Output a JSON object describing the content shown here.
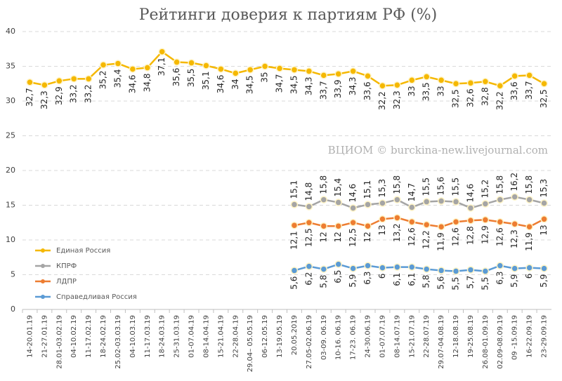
{
  "chart_data": {
    "type": "line",
    "title": "Рейтинги доверия к партиям РФ (%)",
    "annotation": "ВЦИОМ © burckina-new.livejournal.com",
    "categories": [
      "14-20.01.19",
      "21-27.01.19",
      "28.01-03.02.19",
      "04-10.02.19",
      "11-17.02.19",
      "18-24.02.19",
      "25.02-03.03.19",
      "04-10.03.19",
      "11-17.03.19",
      "18-24.03.19",
      "25-31.03.19",
      "01-07.04.19",
      "08-14.04.19",
      "15-21.04.19",
      "22-28.04.19",
      "29.04– 05.05.19",
      "06-12.05.19",
      "13-19.05.19",
      "20.05.2019",
      "27.05-02.06.19",
      "03-09. 06.19",
      "10-16. 06.19",
      "17-23. 06.19",
      "24-30.06.19",
      "01-07.07.19",
      "08-14.07.19",
      "15-21.07.19",
      "22-28.07.19",
      "29.07-04.08.19",
      "12-18.08.19",
      "19-25.08.19",
      "26.08-01.09.19",
      "02.09-08.09.19",
      "09 -15.09.19",
      "16-22.09.19",
      "23-29.09.19"
    ],
    "series": [
      {
        "name": "Единая Россия",
        "color": "#f5b800",
        "values": [
          32.7,
          32.3,
          32.9,
          33.2,
          33.2,
          35.2,
          35.4,
          34.6,
          34.8,
          37.1,
          35.6,
          35.5,
          35.1,
          34.6,
          34,
          34.5,
          35,
          34.7,
          34.5,
          34.3,
          33.7,
          33.9,
          34.3,
          33.6,
          32.2,
          32.3,
          33,
          33.5,
          33,
          32.5,
          32.6,
          32.8,
          32.2,
          33.6,
          33.7,
          32.5
        ],
        "value_labels": [
          "32,7",
          "32,3",
          "32,9",
          "33,2",
          "33,2",
          "35,2",
          "35,4",
          "34,6",
          "34,8",
          "37,1",
          "35,6",
          "35,5",
          "35,1",
          "34,6",
          "34",
          "34,5",
          "35",
          "34,7",
          "34,5",
          "34,3",
          "33,7",
          "33,9",
          "34,3",
          "33,6",
          "32,2",
          "32,3",
          "33",
          "33,5",
          "33",
          "32,5",
          "32,6",
          "32,8",
          "32,2",
          "33,6",
          "33,7",
          "32,5"
        ]
      },
      {
        "name": "КПРФ",
        "color": "#a5a5a5",
        "values": [
          null,
          null,
          null,
          null,
          null,
          null,
          null,
          null,
          null,
          null,
          null,
          null,
          null,
          null,
          null,
          null,
          null,
          null,
          15.1,
          14.8,
          15.8,
          15.4,
          14.6,
          15.1,
          15.3,
          15.8,
          14.7,
          15.5,
          15.6,
          15.5,
          14.6,
          15.2,
          15.8,
          16.2,
          15.8,
          15.3
        ],
        "value_labels": [
          null,
          null,
          null,
          null,
          null,
          null,
          null,
          null,
          null,
          null,
          null,
          null,
          null,
          null,
          null,
          null,
          null,
          null,
          "15,1",
          "14,8",
          "15,8",
          "15,4",
          "14,6",
          "15,1",
          "15,3",
          "15,8",
          "14,7",
          "15,5",
          "15,6",
          "15,5",
          "14,6",
          "15,2",
          "15,8",
          "16,2",
          "15,8",
          "15,3"
        ]
      },
      {
        "name": "ЛДПР",
        "color": "#ed7d31",
        "values": [
          null,
          null,
          null,
          null,
          null,
          null,
          null,
          null,
          null,
          null,
          null,
          null,
          null,
          null,
          null,
          null,
          null,
          null,
          12.1,
          12.5,
          12,
          12,
          12.5,
          12,
          13,
          13.2,
          12.6,
          12.2,
          11.9,
          12.6,
          12.8,
          12.9,
          12.6,
          12.3,
          11.9,
          13
        ],
        "value_labels": [
          null,
          null,
          null,
          null,
          null,
          null,
          null,
          null,
          null,
          null,
          null,
          null,
          null,
          null,
          null,
          null,
          null,
          null,
          "12,1",
          "12,5",
          "12",
          "12",
          "12,5",
          "12",
          "13",
          "13,2",
          "12,6",
          "12,2",
          "11,9",
          "12,6",
          "12,8",
          "12,9",
          "12,6",
          "12,3",
          "11,9",
          "13"
        ]
      },
      {
        "name": "Справедливая Россия",
        "color": "#5b9bd5",
        "values": [
          null,
          null,
          null,
          null,
          null,
          null,
          null,
          null,
          null,
          null,
          null,
          null,
          null,
          null,
          null,
          null,
          null,
          null,
          5.6,
          6.2,
          5.8,
          6.5,
          5.9,
          6.3,
          6,
          6.1,
          6.1,
          5.8,
          5.6,
          5.5,
          5.7,
          5.5,
          6.3,
          5.9,
          6,
          5.9
        ],
        "value_labels": [
          null,
          null,
          null,
          null,
          null,
          null,
          null,
          null,
          null,
          null,
          null,
          null,
          null,
          null,
          null,
          null,
          null,
          null,
          "5,6",
          "6,2",
          "5,8",
          "6,5",
          "5,9",
          "6,3",
          "6",
          "6,1",
          "6,1",
          "5,8",
          "5,6",
          "5,5",
          "5,7",
          "5,5",
          "6,3",
          "5,9",
          "6",
          "5,9"
        ]
      }
    ],
    "ylim": [
      0,
      40
    ],
    "yticks": [
      0,
      5,
      10,
      15,
      20,
      25,
      30,
      35,
      40
    ],
    "grid": true,
    "legend": "left"
  }
}
